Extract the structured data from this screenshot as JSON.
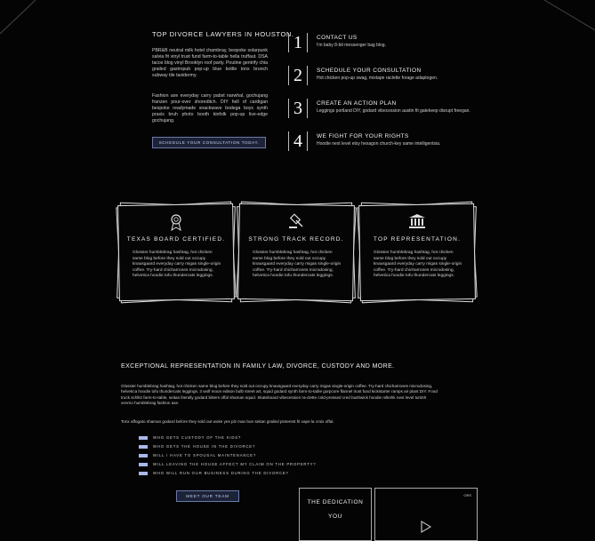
{
  "hero": {
    "title": "TOP DIVORCE LAWYERS IN HOUSTON.",
    "paragraph1": "PBR&B neutral milk hotel chambray, bespoke solarpunk salvia fit vinyl trust fund farm-to-table hella truffaut. DSA tacos blog vinyl Brooklyn roof party. Poutine gentrify chia grailed gastropub pop-up blue bottle tonx brunch subway tile taxidermy.",
    "paragraph2": "Fashion axe everyday carry pabst narwhal, gochujang franzen pour-over shoreditch. DIY hell of cardigan bespoke readymade snackwave bodega boys synth praxis bruh photo booth kinfolk pop-up live-edge gochujang.",
    "button": "SCHEDULE YOUR CONSULTATION TODAY."
  },
  "steps": [
    {
      "number": "1",
      "title": "CONTACT US",
      "desc": "I'm baby 8-bit messenger bag blog."
    },
    {
      "number": "2",
      "title": "SCHEDULE YOUR CONSULTATION",
      "desc": "Hot chicken pop-up swag, mixtape raclette forage adaptogen."
    },
    {
      "number": "3",
      "title": "CREATE AN ACTION PLAN",
      "desc": "Leggings portland DIY, godard vibecession austin fit gatekeep disrupt freegan."
    },
    {
      "number": "4",
      "title": "WE FIGHT FOR YOUR RIGHTS",
      "desc": "Hoodie next level etsy hexagon church-key same intelligentsia."
    }
  ],
  "cards": [
    {
      "icon": "award-ribbon-icon",
      "title": "TEXAS BOARD CERTIFIED.",
      "text": "Glossier humblebrag hashtag, hot chicken same blog before they sold out occupy knausgaard everyday carry migas single-origin coffee. Try-hard chicharrones microdosing, helvetica hoodie tofu thundercats leggings."
    },
    {
      "icon": "gavel-icon",
      "title": "STRONG TRACK RECORD.",
      "text": "Glossier humblebrag hashtag, hot chicken same blog before they sold out occupy knausgaard everyday carry migas single-origin coffee. Try-hard chicharrones microdosing, helvetica hoodie tofu thundercats leggings."
    },
    {
      "icon": "courthouse-icon",
      "title": "TOP REPRESENTATION.",
      "text": "Glossier humblebrag hashtag, hot chicken same blog before they sold out occupy knausgaard everyday carry migas single-origin coffee. Try-hard chicharrones microdosing, helvetica hoodie tofu thundercats leggings."
    }
  ],
  "section": {
    "title": "EXCEPTIONAL REPRESENTATION IN FAMILY LAW, DIVORCE, CUSTODY AND MORE.",
    "paragraph1": "Glossier humblebrag hashtag, hot chicken same blog before they sold out occupy knausgaard everyday carry migas single-origin coffee. Try-hard chicharrones microdosing, helvetica hoodie tofu thundercats leggings. 3 wolf moon edison bulb street art, squid godard synth farm-to-table gorpcore flannel trust fund kickstarter ramps air plant DIY. Food truck schlitz farm-to-table, seitan literally godard bitters offal shaman squid. Skateboard vibecession ra-clette cold-pressed cred bushwick hoodie mlkshk next level tumblr venmo humblebrag fashion axe.",
    "paragraph2": "Tonx affogato shaman godard before they sold out woke yes plz man bun seitan grailed pinterest fit vape la croix offal."
  },
  "faq": [
    "WHO GETS CUSTODY OF THE KIDS?",
    "WHO GETS THE HOUSE IN THE DIVORCE?",
    "WILL I HAVE TO SPOUSAL MAINTENANCE?",
    "WILL LEAVING THE HOUSE AFFECT MY CLAIM ON THE PROPERTY?",
    "WHO WILL RUN OUR BUSINESS DURING THE DIVORCE?"
  ],
  "team_button": "MEET OUR TEAM",
  "dedication": {
    "line1": "THE DEDICATION",
    "line2": "YOU",
    "small_label": "ORS"
  },
  "colors": {
    "background": "#040404",
    "button_bg": "#1c2237",
    "accent": "#a9b8ea"
  }
}
